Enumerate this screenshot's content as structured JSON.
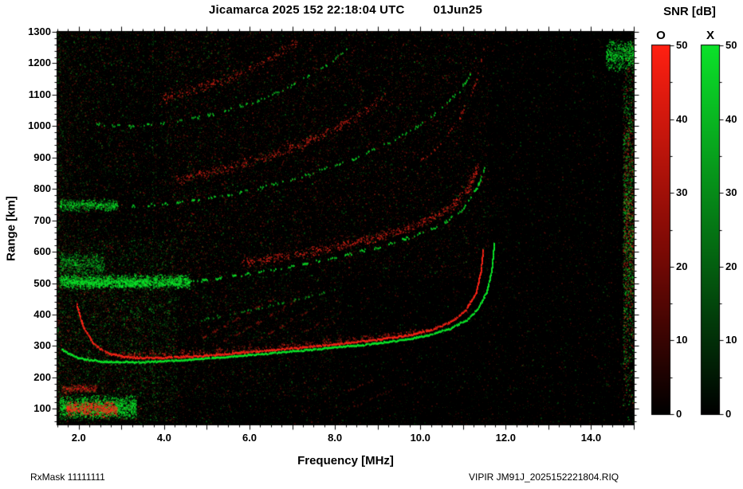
{
  "header": {
    "title_left": "Jicamarca 2025 152 22:18:04 UTC",
    "title_right": "01Jun25"
  },
  "footer": {
    "left": "RxMask 11111111",
    "right": "VIPIR  JM91J_2025152221804.RIQ"
  },
  "colorbar": {
    "title": "SNR [dB]",
    "min": 0,
    "max": 50,
    "tick_values": [
      0,
      10,
      20,
      30,
      40,
      50
    ],
    "tick_labels": [
      "0",
      "10",
      "20",
      "30",
      "40",
      "50"
    ],
    "bars": [
      {
        "label": "O",
        "gradient": [
          "#ff2012",
          "#7d0a05",
          "#000000"
        ]
      },
      {
        "label": "X",
        "gradient": [
          "#0ce22a",
          "#046a12",
          "#000000"
        ]
      }
    ]
  },
  "chart_data": {
    "type": "heatmap",
    "title": "Jicamarca 2025 152 22:18:04 UTC 01Jun25",
    "xlabel": "Frequency [MHz]",
    "ylabel": "Range [km]",
    "xlim": [
      1.5,
      15.0
    ],
    "ylim": [
      50,
      1300
    ],
    "xticks": [
      2.0,
      4.0,
      6.0,
      8.0,
      10.0,
      12.0,
      14.0
    ],
    "xtick_labels": [
      "2.0",
      "4.0",
      "6.0",
      "8.0",
      "10.0",
      "12.0",
      "14.0"
    ],
    "yticks": [
      100,
      200,
      300,
      400,
      500,
      600,
      700,
      800,
      900,
      1000,
      1100,
      1200,
      1300
    ],
    "ytick_labels": [
      "100",
      "200",
      "300",
      "400",
      "500",
      "600",
      "700",
      "800",
      "900",
      "1000",
      "1100",
      "1200",
      "1300"
    ],
    "background_color": "#000000",
    "snr_range_db": [
      0,
      50
    ],
    "critical_frequency_fof2_mhz": 11.5,
    "modes": {
      "O": {
        "color": "#ff2416",
        "meaning": "O-mode echo SNR"
      },
      "X": {
        "color": "#0ae828",
        "meaning": "X-mode echo SNR"
      }
    },
    "traces": [
      {
        "name": "F1-X-main",
        "mode": "X",
        "style": "line",
        "density": 0.97,
        "alpha": 0.95,
        "jitter": 1.6,
        "points": [
          [
            1.6,
            288
          ],
          [
            2.0,
            262
          ],
          [
            2.6,
            250
          ],
          [
            3.5,
            249
          ],
          [
            4.5,
            256
          ],
          [
            5.5,
            266
          ],
          [
            6.5,
            278
          ],
          [
            7.5,
            290
          ],
          [
            8.5,
            302
          ],
          [
            9.5,
            318
          ],
          [
            10.2,
            335
          ],
          [
            10.7,
            356
          ],
          [
            11.1,
            385
          ],
          [
            11.35,
            420
          ],
          [
            11.55,
            470
          ],
          [
            11.67,
            540
          ],
          [
            11.73,
            630
          ]
        ]
      },
      {
        "name": "F1-O-main",
        "mode": "O",
        "style": "line",
        "density": 0.93,
        "alpha": 0.9,
        "jitter": 1.8,
        "points": [
          [
            1.95,
            432
          ],
          [
            2.1,
            362
          ],
          [
            2.35,
            306
          ],
          [
            2.7,
            276
          ],
          [
            3.2,
            264
          ],
          [
            4.0,
            263
          ],
          [
            5.0,
            270
          ],
          [
            6.0,
            281
          ],
          [
            7.0,
            293
          ],
          [
            8.0,
            306
          ],
          [
            9.0,
            321
          ],
          [
            9.8,
            337
          ],
          [
            10.3,
            354
          ],
          [
            10.75,
            380
          ],
          [
            11.05,
            414
          ],
          [
            11.3,
            468
          ],
          [
            11.42,
            540
          ],
          [
            11.47,
            610
          ]
        ]
      },
      {
        "name": "F1-O-upper-halo",
        "mode": "O",
        "style": "fuzzy",
        "density": 0.5,
        "alpha": 0.3,
        "jitter": 5,
        "points": [
          [
            3.0,
            272
          ],
          [
            5.0,
            280
          ],
          [
            7.0,
            302
          ],
          [
            9.0,
            330
          ],
          [
            10.2,
            352
          ]
        ]
      },
      {
        "name": "hop2-X",
        "mode": "X",
        "style": "dash",
        "density": 0.6,
        "alpha": 0.8,
        "jitter": 3,
        "dash": 9,
        "points": [
          [
            1.9,
            502
          ],
          [
            2.9,
            492
          ],
          [
            4.0,
            497
          ],
          [
            5.0,
            510
          ],
          [
            6.0,
            530
          ],
          [
            7.0,
            554
          ],
          [
            8.0,
            582
          ],
          [
            9.0,
            615
          ],
          [
            9.8,
            648
          ],
          [
            10.5,
            688
          ],
          [
            11.0,
            736
          ],
          [
            11.35,
            810
          ],
          [
            11.55,
            885
          ]
        ]
      },
      {
        "name": "hop2-O",
        "mode": "O",
        "style": "fuzzy",
        "density": 0.8,
        "alpha": 0.42,
        "jitter": 7,
        "points": [
          [
            5.8,
            565
          ],
          [
            6.8,
            585
          ],
          [
            7.8,
            610
          ],
          [
            8.8,
            640
          ],
          [
            9.6,
            672
          ],
          [
            10.2,
            702
          ],
          [
            10.7,
            742
          ],
          [
            11.1,
            798
          ],
          [
            11.35,
            872
          ]
        ]
      },
      {
        "name": "hop3-X",
        "mode": "X",
        "style": "dash",
        "density": 0.5,
        "alpha": 0.7,
        "jitter": 3,
        "dash": 10,
        "points": [
          [
            2.0,
            752
          ],
          [
            3.0,
            744
          ],
          [
            4.2,
            754
          ],
          [
            5.2,
            774
          ],
          [
            6.2,
            802
          ],
          [
            7.2,
            840
          ],
          [
            8.2,
            884
          ],
          [
            9.0,
            930
          ],
          [
            9.7,
            980
          ],
          [
            10.3,
            1035
          ],
          [
            10.9,
            1110
          ],
          [
            11.3,
            1190
          ]
        ]
      },
      {
        "name": "hop3-O",
        "mode": "O",
        "style": "fuzzy",
        "density": 0.7,
        "alpha": 0.38,
        "jitter": 8,
        "points": [
          [
            4.3,
            830
          ],
          [
            5.2,
            858
          ],
          [
            6.2,
            896
          ],
          [
            7.2,
            942
          ],
          [
            8.0,
            992
          ],
          [
            8.7,
            1045
          ],
          [
            9.2,
            1098
          ]
        ]
      },
      {
        "name": "hop4-X",
        "mode": "X",
        "style": "dash",
        "density": 0.45,
        "alpha": 0.65,
        "jitter": 3,
        "dash": 10,
        "points": [
          [
            2.3,
            1008
          ],
          [
            3.2,
            998
          ],
          [
            4.2,
            1012
          ],
          [
            5.2,
            1040
          ],
          [
            6.2,
            1082
          ],
          [
            7.0,
            1130
          ],
          [
            7.7,
            1185
          ],
          [
            8.3,
            1248
          ]
        ]
      },
      {
        "name": "hop4-O",
        "mode": "O",
        "style": "fuzzy",
        "density": 0.6,
        "alpha": 0.36,
        "jitter": 8,
        "points": [
          [
            3.9,
            1085
          ],
          [
            4.8,
            1120
          ],
          [
            5.7,
            1165
          ],
          [
            6.5,
            1215
          ],
          [
            7.1,
            1270
          ]
        ]
      },
      {
        "name": "hop2-O-tail-high",
        "mode": "O",
        "style": "dash",
        "density": 0.4,
        "alpha": 0.5,
        "jitter": 4,
        "dash": 8,
        "points": [
          [
            9.6,
            850
          ],
          [
            10.3,
            920
          ],
          [
            10.9,
            1020
          ],
          [
            11.3,
            1140
          ],
          [
            11.5,
            1250
          ]
        ]
      },
      {
        "name": "mid-green-oblique",
        "mode": "X",
        "style": "dash",
        "density": 0.4,
        "alpha": 0.45,
        "jitter": 3,
        "dash": 8,
        "points": [
          [
            4.8,
            382
          ],
          [
            6.0,
            415
          ],
          [
            7.2,
            452
          ],
          [
            8.0,
            478
          ]
        ]
      },
      {
        "name": "interference-streak-1",
        "mode": "O",
        "style": "dash",
        "density": 0.5,
        "alpha": 0.3,
        "jitter": 2,
        "dash": 7,
        "points": [
          [
            4.7,
            310
          ],
          [
            6.6,
            455
          ]
        ]
      },
      {
        "name": "interference-streak-2",
        "mode": "O",
        "style": "dash",
        "density": 0.5,
        "alpha": 0.28,
        "jitter": 2,
        "dash": 7,
        "points": [
          [
            5.2,
            300
          ],
          [
            7.1,
            445
          ]
        ]
      },
      {
        "name": "interference-streak-3",
        "mode": "O",
        "style": "dash",
        "density": 0.45,
        "alpha": 0.25,
        "jitter": 2,
        "dash": 7,
        "points": [
          [
            5.8,
            292
          ],
          [
            7.7,
            435
          ]
        ]
      },
      {
        "name": "interference-streak-4",
        "mode": "O",
        "style": "dash",
        "density": 0.4,
        "alpha": 0.22,
        "jitter": 2,
        "dash": 7,
        "points": [
          [
            6.5,
            285
          ],
          [
            8.3,
            425
          ]
        ]
      },
      {
        "name": "interference-streak-5",
        "mode": "O",
        "style": "dash",
        "density": 0.4,
        "alpha": 0.22,
        "jitter": 2,
        "dash": 7,
        "points": [
          [
            7.2,
            95
          ],
          [
            9.3,
            215
          ]
        ]
      },
      {
        "name": "interference-streak-6",
        "mode": "O",
        "style": "dash",
        "density": 0.35,
        "alpha": 0.18,
        "jitter": 2,
        "dash": 7,
        "points": [
          [
            7.9,
            75
          ],
          [
            9.9,
            195
          ]
        ]
      },
      {
        "name": "interference-streak-7",
        "mode": "X",
        "style": "dash",
        "density": 0.4,
        "alpha": 0.25,
        "jitter": 2,
        "dash": 7,
        "points": [
          [
            2.6,
            365
          ],
          [
            4.2,
            448
          ]
        ]
      }
    ],
    "clouds": [
      {
        "name": "E-region-green",
        "f": [
          1.55,
          3.35
        ],
        "r": 105,
        "spread": 42,
        "mode": "X",
        "alpha": 0.5,
        "n": 2000
      },
      {
        "name": "E-region-red",
        "f": [
          1.7,
          2.9
        ],
        "r": 100,
        "spread": 26,
        "mode": "O",
        "alpha": 0.5,
        "n": 900
      },
      {
        "name": "E-region-red-upper",
        "f": [
          1.6,
          2.4
        ],
        "r": 165,
        "spread": 15,
        "mode": "O",
        "alpha": 0.3,
        "n": 300
      },
      {
        "name": "hop2-left-green",
        "f": [
          1.55,
          4.6
        ],
        "r": 505,
        "spread": 26,
        "mode": "X",
        "alpha": 0.5,
        "n": 2600
      },
      {
        "name": "hop2-left-green-low",
        "f": [
          1.55,
          2.6
        ],
        "r": 560,
        "spread": 40,
        "mode": "X",
        "alpha": 0.3,
        "n": 700
      },
      {
        "name": "hop3-left-green",
        "f": [
          1.55,
          2.9
        ],
        "r": 748,
        "spread": 22,
        "mode": "X",
        "alpha": 0.4,
        "n": 700
      },
      {
        "name": "top-right-green-corner",
        "f": [
          14.35,
          15.0
        ],
        "r": 1225,
        "spread": 55,
        "mode": "X",
        "alpha": 0.5,
        "n": 700
      },
      {
        "name": "right-edge-band-green",
        "f": [
          14.75,
          15.0
        ],
        "r": 680,
        "spread": 640,
        "mode": "X",
        "alpha": 0.35,
        "n": 1400
      },
      {
        "name": "right-edge-band-red",
        "f": [
          14.75,
          15.0
        ],
        "r": 680,
        "spread": 640,
        "mode": "O",
        "alpha": 0.3,
        "n": 900
      }
    ],
    "stripes": [
      {
        "f": 3.74,
        "mode": "X",
        "alpha": 0.35,
        "r": [
          130,
          1300
        ],
        "density": 0.5
      },
      {
        "f": 3.8,
        "mode": "O",
        "alpha": 0.2,
        "r": [
          300,
          1300
        ],
        "density": 0.35
      },
      {
        "f": 5.9,
        "mode": "O",
        "alpha": 0.1,
        "r": [
          700,
          1300
        ],
        "density": 0.4
      },
      {
        "f": 6.55,
        "mode": "O",
        "alpha": 0.12,
        "r": [
          600,
          1300
        ],
        "density": 0.5
      },
      {
        "f": 7.05,
        "mode": "O",
        "alpha": 0.12,
        "r": [
          600,
          1300
        ],
        "density": 0.5
      },
      {
        "f": 7.55,
        "mode": "O",
        "alpha": 0.1,
        "r": [
          550,
          1300
        ],
        "density": 0.5
      },
      {
        "f": 8.6,
        "mode": "O",
        "alpha": 0.08,
        "r": [
          250,
          1300
        ],
        "density": 0.4
      }
    ],
    "speckle": [
      {
        "n": 20000,
        "f": [
          1.5,
          15.0
        ],
        "r": [
          50,
          1300
        ],
        "green_frac": 0.45,
        "a0": 0.03,
        "a1": 0.26,
        "bias": false
      },
      {
        "n": 14000,
        "f": [
          1.5,
          9.5
        ],
        "r": [
          50,
          1300
        ],
        "green_frac": 0.5,
        "a0": 0.04,
        "a1": 0.32,
        "bias": true
      },
      {
        "n": 9000,
        "f": [
          4.0,
          11.6
        ],
        "r": [
          520,
          1300
        ],
        "green_frac": 0.22,
        "a0": 0.05,
        "a1": 0.34,
        "bias": false
      },
      {
        "n": 5000,
        "f": [
          1.5,
          4.3
        ],
        "r": [
          60,
          640
        ],
        "green_frac": 0.75,
        "a0": 0.05,
        "a1": 0.4,
        "bias": false
      },
      {
        "n": 3500,
        "f": [
          2.2,
          8.2
        ],
        "r": [
          140,
          520
        ],
        "green_frac": 0.35,
        "a0": 0.04,
        "a1": 0.26,
        "bias": false
      },
      {
        "n": 2200,
        "f": [
          9.0,
          14.7
        ],
        "r": [
          50,
          1300
        ],
        "green_frac": 0.5,
        "a0": 0.03,
        "a1": 0.15,
        "bias": false
      }
    ]
  }
}
